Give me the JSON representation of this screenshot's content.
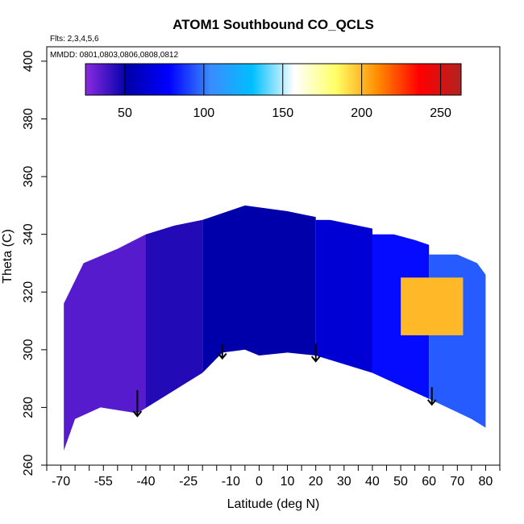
{
  "chart_data": {
    "type": "heatmap",
    "title": "ATOM1 Southbound CO_QCLS",
    "annotations": [
      "Flts: 2,3,4,5,6",
      "MMDD: 0801,0803,0806,0808,0812"
    ],
    "xlabel": "Latitude (deg N)",
    "ylabel": "Theta (C)",
    "xlim": [
      -75,
      85
    ],
    "ylim": [
      260,
      405
    ],
    "x_ticks": [
      -70,
      -55,
      -40,
      -25,
      -10,
      0,
      10,
      20,
      30,
      40,
      50,
      60,
      70,
      80
    ],
    "y_ticks": [
      260,
      280,
      300,
      320,
      340,
      360,
      380,
      400
    ],
    "colorbar": {
      "range": [
        25,
        263
      ],
      "ticks": [
        50,
        100,
        150,
        200,
        250
      ],
      "colors": [
        "#8a2be2",
        "#0000a8",
        "#0000ff",
        "#3a8cff",
        "#00bfff",
        "#ffffff",
        "#ffff66",
        "#ff8c00",
        "#ff0000",
        "#b22222"
      ]
    },
    "lower_boundary": [
      [
        -69,
        265
      ],
      [
        -65,
        276
      ],
      [
        -56,
        280
      ],
      [
        -43,
        278
      ],
      [
        -20,
        292
      ],
      [
        -13,
        299
      ],
      [
        -5,
        300
      ],
      [
        0,
        298
      ],
      [
        10,
        299
      ],
      [
        20,
        298
      ],
      [
        40,
        292
      ],
      [
        60,
        283
      ],
      [
        75,
        276
      ],
      [
        80,
        273
      ]
    ],
    "upper_boundary": [
      [
        -69,
        316
      ],
      [
        -62,
        330
      ],
      [
        -50,
        335
      ],
      [
        -40,
        340
      ],
      [
        -30,
        343
      ],
      [
        -20,
        345
      ],
      [
        -5,
        350
      ],
      [
        10,
        348
      ],
      [
        25,
        345
      ],
      [
        40,
        342
      ],
      [
        55,
        338
      ],
      [
        70,
        333
      ],
      [
        77,
        330
      ],
      [
        80,
        326
      ]
    ],
    "field_regions": [
      {
        "x": [
          -69,
          -40
        ],
        "y": [
          265,
          340
        ],
        "value": 35
      },
      {
        "x": [
          -40,
          -20
        ],
        "y": [
          278,
          345
        ],
        "value": 45
      },
      {
        "x": [
          -20,
          20
        ],
        "y": [
          292,
          350
        ],
        "value": 52
      },
      {
        "x": [
          20,
          40
        ],
        "y": [
          292,
          345
        ],
        "value": 65
      },
      {
        "x": [
          40,
          60
        ],
        "y": [
          283,
          340
        ],
        "value": 80
      },
      {
        "x": [
          60,
          80
        ],
        "y": [
          273,
          333
        ],
        "value": 95
      },
      {
        "x": [
          50,
          72
        ],
        "y": [
          305,
          325
        ],
        "value": 200
      }
    ],
    "arrows": [
      {
        "x": -43,
        "y_top": 286,
        "y_tip": 277
      },
      {
        "x": -13,
        "y_top": 302,
        "y_tip": 297
      },
      {
        "x": 20,
        "y_top": 302,
        "y_tip": 296
      },
      {
        "x": 61,
        "y_top": 287,
        "y_tip": 281
      }
    ]
  }
}
